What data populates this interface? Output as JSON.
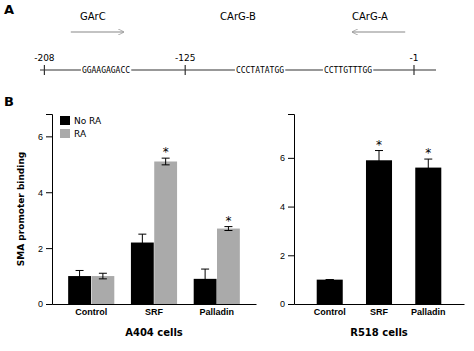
{
  "chart_data": [
    {
      "type": "diagram",
      "title": "A",
      "annotations": [
        {
          "text": "GArC",
          "kind": "region"
        },
        {
          "text": "CArG-B",
          "kind": "region"
        },
        {
          "text": "CArG-A",
          "kind": "region"
        },
        {
          "text": "-208",
          "kind": "position"
        },
        {
          "text": "-125",
          "kind": "position"
        },
        {
          "text": "-1",
          "kind": "position"
        },
        {
          "text": "GGAAGAGACC",
          "kind": "sequence"
        },
        {
          "text": "CCCTATATGG",
          "kind": "sequence"
        },
        {
          "text": "CCTTGTTTGG",
          "kind": "sequence"
        }
      ]
    },
    {
      "type": "bar",
      "title": "B",
      "xlabel": "A404 cells",
      "ylabel": "SMA promoter binding",
      "categories": [
        "Control",
        "SRF",
        "Palladin"
      ],
      "series": [
        {
          "name": "No RA",
          "color": "#000000",
          "values": [
            1.0,
            2.2,
            0.9
          ],
          "errors": [
            0.2,
            0.3,
            0.35
          ]
        },
        {
          "name": "RA",
          "color": "#aaaaaa",
          "values": [
            1.0,
            5.1,
            2.7
          ],
          "errors": [
            0.1,
            0.12,
            0.07
          ]
        }
      ],
      "ylim": [
        0,
        6.8
      ],
      "yticks": [
        0,
        2,
        4,
        6
      ],
      "legend": "upper left",
      "annotations": [
        {
          "text": "*",
          "series": "RA",
          "category": "SRF"
        },
        {
          "text": "*",
          "series": "RA",
          "category": "Palladin"
        }
      ]
    },
    {
      "type": "bar",
      "xlabel": "R518 cells",
      "categories": [
        "Control",
        "SRF",
        "Palladin"
      ],
      "values": [
        1.0,
        5.9,
        5.6
      ],
      "errors": [
        0.0,
        0.4,
        0.35
      ],
      "color": "#000000",
      "ylim": [
        0,
        7.8
      ],
      "yticks": [
        0,
        2,
        4,
        6
      ],
      "annotations": [
        {
          "text": "*",
          "category": "SRF"
        },
        {
          "text": "*",
          "category": "Palladin"
        }
      ]
    }
  ]
}
